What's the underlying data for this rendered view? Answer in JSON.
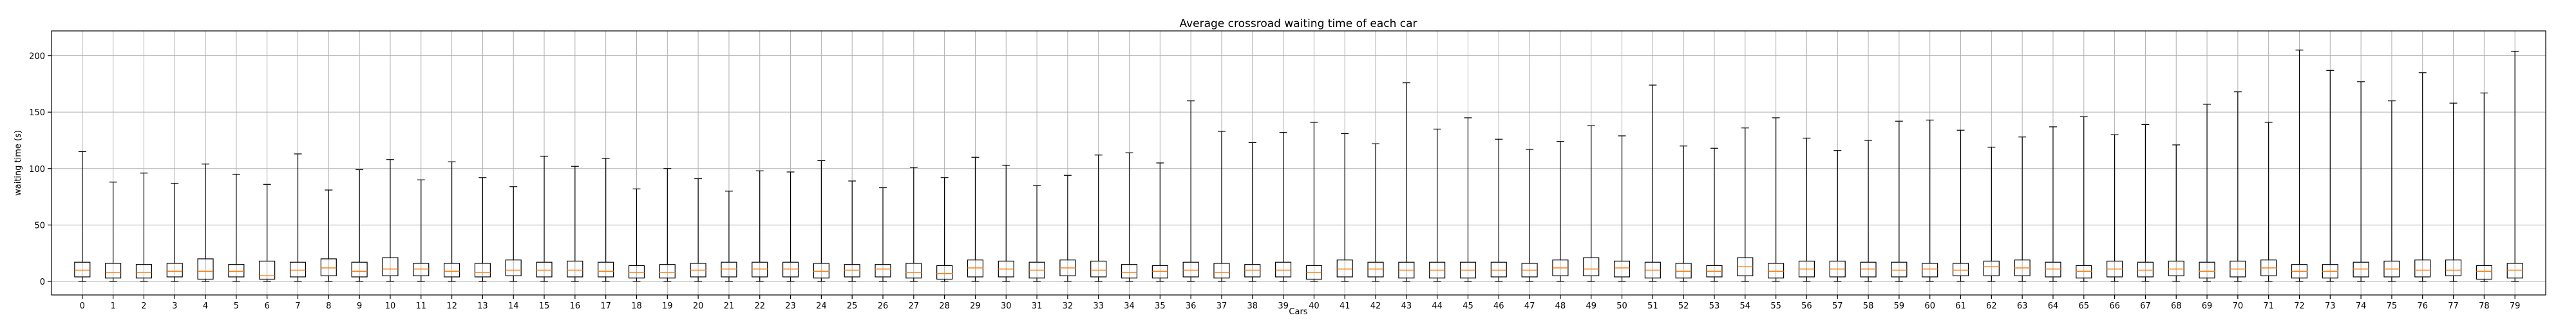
{
  "chart_data": {
    "type": "boxplot",
    "title": "Average crossroad waiting time of each car",
    "xlabel": "Cars",
    "ylabel": "waiting time (s)",
    "ylim": [
      -12,
      222
    ],
    "yticks": [
      0,
      50,
      100,
      150,
      200
    ],
    "grid": true,
    "median_color": "#ff7f0e",
    "box_color": "#000000",
    "categories": [
      "0",
      "1",
      "2",
      "3",
      "4",
      "5",
      "6",
      "7",
      "8",
      "9",
      "10",
      "11",
      "12",
      "13",
      "14",
      "15",
      "16",
      "17",
      "18",
      "19",
      "20",
      "21",
      "22",
      "23",
      "24",
      "25",
      "26",
      "27",
      "28",
      "29",
      "30",
      "31",
      "32",
      "33",
      "34",
      "35",
      "36",
      "37",
      "38",
      "39",
      "40",
      "41",
      "42",
      "43",
      "44",
      "45",
      "46",
      "47",
      "48",
      "49",
      "50",
      "51",
      "52",
      "53",
      "54",
      "55",
      "56",
      "57",
      "58",
      "59",
      "60",
      "61",
      "62",
      "63",
      "64",
      "65",
      "66",
      "67",
      "68",
      "69",
      "70",
      "71",
      "72",
      "73",
      "74",
      "75",
      "76",
      "77",
      "78",
      "79"
    ],
    "whisker_high": [
      115,
      88,
      96,
      87,
      104,
      95,
      86,
      113,
      81,
      99,
      108,
      90,
      106,
      92,
      84,
      111,
      102,
      109,
      82,
      100,
      91,
      80,
      98,
      97,
      107,
      89,
      83,
      101,
      92,
      110,
      103,
      85,
      94,
      112,
      114,
      105,
      160,
      133,
      123,
      132,
      141,
      131,
      122,
      176,
      135,
      145,
      126,
      117,
      124,
      138,
      129,
      174,
      120,
      118,
      136,
      145,
      127,
      116,
      125,
      142,
      143,
      134,
      119,
      128,
      137,
      146,
      130,
      139,
      121,
      157,
      168,
      141,
      205,
      187,
      177,
      160,
      185,
      158,
      167,
      204
    ],
    "q3": [
      17,
      16,
      15,
      16,
      20,
      15,
      18,
      17,
      20,
      17,
      21,
      16,
      16,
      16,
      19,
      17,
      18,
      17,
      14,
      15,
      16,
      17,
      17,
      17,
      16,
      15,
      15,
      16,
      14,
      19,
      18,
      17,
      19,
      18,
      15,
      14,
      17,
      16,
      15,
      17,
      14,
      19,
      17,
      17,
      17,
      17,
      17,
      16,
      19,
      21,
      18,
      17,
      16,
      14,
      21,
      16,
      18,
      18,
      17,
      17,
      16,
      16,
      18,
      19,
      17,
      14,
      18,
      17,
      18,
      17,
      18,
      19,
      15,
      15,
      17,
      18,
      19,
      19,
      14,
      16
    ],
    "median": [
      10,
      8,
      8,
      9,
      9,
      9,
      5,
      10,
      12,
      9,
      11,
      11,
      9,
      8,
      10,
      10,
      10,
      9,
      8,
      8,
      10,
      11,
      11,
      11,
      9,
      10,
      11,
      8,
      7,
      12,
      11,
      10,
      12,
      10,
      8,
      9,
      10,
      8,
      10,
      10,
      8,
      11,
      11,
      10,
      10,
      10,
      10,
      10,
      12,
      11,
      12,
      10,
      9,
      9,
      13,
      9,
      11,
      11,
      11,
      10,
      11,
      10,
      13,
      12,
      11,
      9,
      11,
      10,
      11,
      9,
      11,
      12,
      9,
      9,
      11,
      11,
      10,
      10,
      9,
      10
    ],
    "q1": [
      4,
      3,
      3,
      4,
      2,
      4,
      2,
      4,
      5,
      4,
      5,
      5,
      4,
      4,
      5,
      4,
      4,
      4,
      3,
      3,
      4,
      4,
      4,
      4,
      3,
      4,
      4,
      3,
      2,
      4,
      4,
      3,
      5,
      4,
      3,
      3,
      4,
      3,
      4,
      4,
      2,
      4,
      4,
      3,
      3,
      3,
      4,
      4,
      5,
      5,
      4,
      3,
      3,
      4,
      5,
      3,
      4,
      4,
      4,
      4,
      4,
      5,
      5,
      5,
      4,
      3,
      4,
      4,
      5,
      3,
      4,
      5,
      3,
      3,
      4,
      4,
      4,
      5,
      2,
      3
    ],
    "whisker_low": [
      0,
      0,
      0,
      0,
      0,
      0,
      0,
      0,
      0,
      0,
      0,
      0,
      0,
      0,
      0,
      0,
      0,
      0,
      0,
      0,
      0,
      0,
      0,
      0,
      0,
      0,
      0,
      0,
      0,
      0,
      0,
      0,
      0,
      0,
      0,
      0,
      0,
      0,
      0,
      0,
      0,
      0,
      0,
      0,
      0,
      0,
      0,
      0,
      0,
      0,
      0,
      0,
      0,
      0,
      0,
      0,
      0,
      0,
      0,
      0,
      0,
      0,
      0,
      0,
      0,
      0,
      0,
      0,
      0,
      0,
      0,
      0,
      0,
      0,
      0,
      0,
      0,
      0,
      0,
      0
    ]
  }
}
